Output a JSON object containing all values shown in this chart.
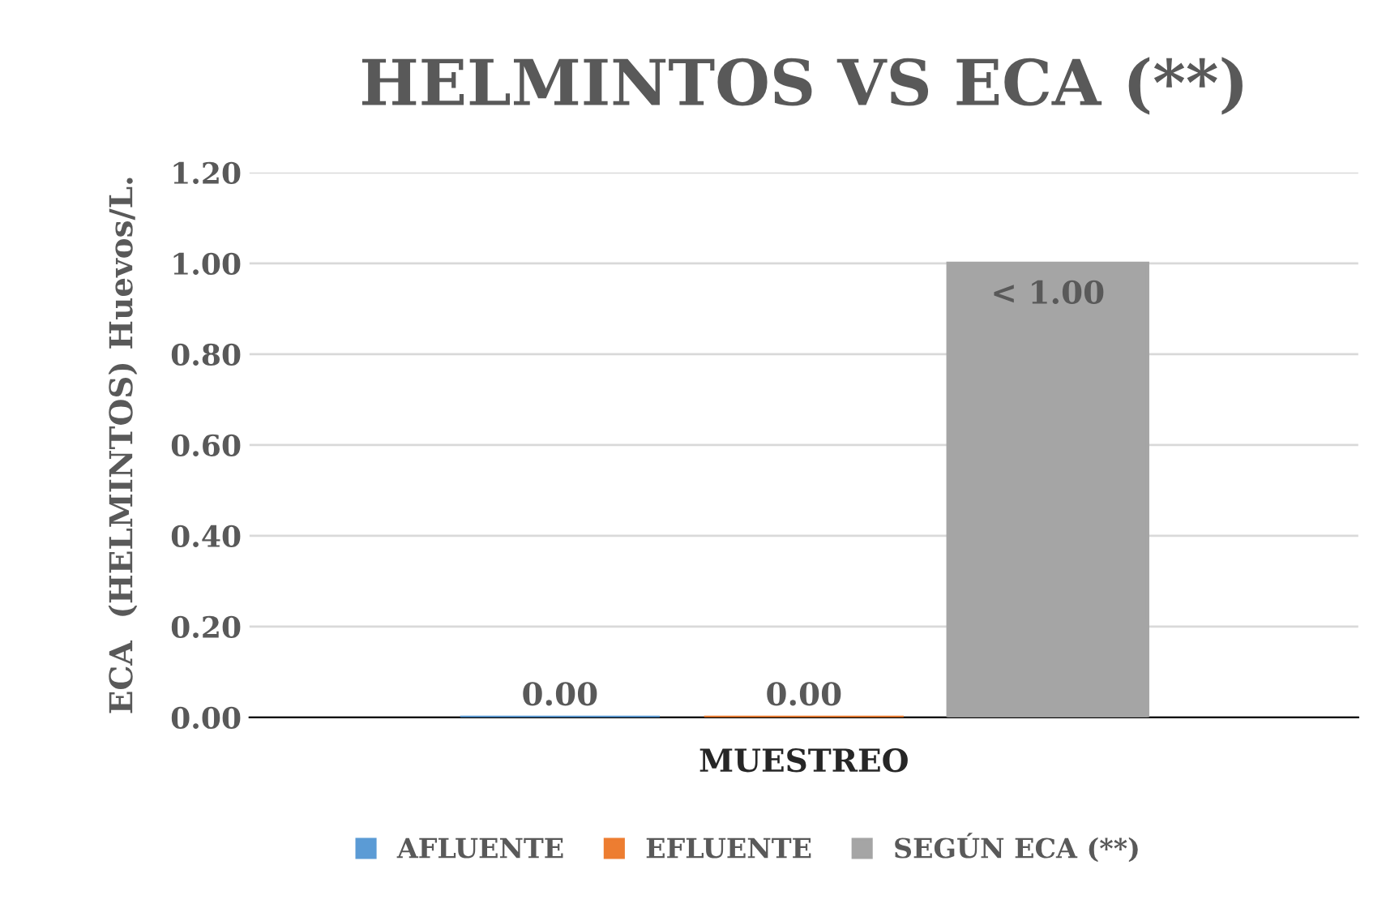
{
  "chart_data": {
    "type": "bar",
    "title": "HELMINTOS VS ECA (**)",
    "xlabel": "MUESTREO",
    "ylabel": "ECA  (HELMINTOS) Huevos/L.",
    "categories": [
      null
    ],
    "series": [
      {
        "name": "AFLUENTE",
        "color": "#5b9bd5",
        "values": [
          0
        ],
        "value_labels": [
          "0.00"
        ]
      },
      {
        "name": "EFLUENTE",
        "color": "#ed7d31",
        "values": [
          0
        ],
        "value_labels": [
          "0.00"
        ]
      },
      {
        "name": "SEGÚN ECA (**)",
        "color": "#a5a5a5",
        "values": [
          1.0
        ],
        "value_labels": [
          "< 1.00"
        ]
      }
    ],
    "ylim": [
      0,
      1.2
    ],
    "yticks": [
      {
        "value": 0,
        "label": "0.00"
      },
      {
        "value": 0.2,
        "label": "0.20"
      },
      {
        "value": 0.4,
        "label": "0.40"
      },
      {
        "value": 0.6,
        "label": "0.60"
      },
      {
        "value": 0.8,
        "label": "0.80"
      },
      {
        "value": 1.0,
        "label": "1.00"
      },
      {
        "value": 1.2,
        "label": "1.20"
      }
    ],
    "grid": "y",
    "legend": "bottom"
  }
}
